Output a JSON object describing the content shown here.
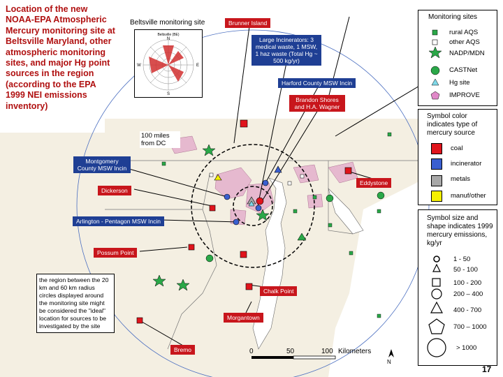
{
  "title": "Location of the new NOAA-EPA Atmospheric Mercury monitoring site at Beltsville Maryland, other atmospheric monitoring sites, and major Hg point sources in the region (according to the EPA 1999 NEI emissions inventory)",
  "beltsville": {
    "title": "Beltsville monitoring site",
    "rose_caption": "Beltsville (BE)",
    "compass": [
      "N",
      "E",
      "S",
      "W"
    ]
  },
  "distance_label": "100 miles from DC",
  "region_note": "the region between the 20 km and 60 km radius circles displayed around the monitoring site might be considered the \"ideal\" location for sources to be investigated by the site",
  "sources": {
    "brunner_island": "Brunner Island",
    "large_incinerators": "Large Incinerators: 3 medical waste, 1 MSW, 1 haz waste (Total Hg ~ 500 kg/yr)",
    "harford": "Harford County MSW Incin",
    "brandon_shores": "Brandon Shores and H.A. Wagner",
    "montgomery": "Montgomery County MSW Incin",
    "eddystone": "Eddystone",
    "dickerson": "Dickerson",
    "arlington": "Arlington - Pentagon MSW Incin",
    "possum_point": "Possum Point",
    "chalk_point": "Chalk Point",
    "morgantown": "Morgantown",
    "bremo": "Bremo"
  },
  "scale": {
    "ticks": [
      "0",
      "50",
      "100"
    ],
    "unit": "Kilometers",
    "north": "N"
  },
  "legend": {
    "sites_title": "Monitoring sites",
    "sites": [
      {
        "label": "rural AQS",
        "icon": "green-square-icon",
        "color": "#2aa848"
      },
      {
        "label": "other AQS",
        "icon": "white-square-icon",
        "color": "#ffffff"
      },
      {
        "label": "NADP/MDN",
        "icon": "green-star-icon",
        "color": "#2aa848"
      },
      {
        "label": "CASTNet",
        "icon": "green-circle-icon",
        "color": "#2aa848"
      },
      {
        "label": "Hg site",
        "icon": "cyan-triangle-icon",
        "color": "#7fd8e8"
      },
      {
        "label": "IMPROVE",
        "icon": "pink-pentagon-icon",
        "color": "#e088c8"
      }
    ],
    "color_title": "Symbol color indicates type of mercury source",
    "colors": [
      {
        "label": "coal",
        "color": "#e0141c"
      },
      {
        "label": "incinerator",
        "color": "#3a5fd0"
      },
      {
        "label": "metals",
        "color": "#a8a8a8"
      },
      {
        "label": "manuf/other",
        "color": "#f6f000"
      }
    ],
    "size_title": "Symbol size and shape indicates 1999 mercury emissions, kg/yr",
    "sizes": [
      {
        "label": "1 - 50",
        "icon": "small-circle-icon"
      },
      {
        "label": "50 - 100",
        "icon": "small-triangle-icon"
      },
      {
        "label": "100 - 200",
        "icon": "small-square-icon"
      },
      {
        "label": "200 – 400",
        "icon": "medium-circle-icon"
      },
      {
        "label": "400 - 700",
        "icon": "large-triangle-icon"
      },
      {
        "label": "700 – 1000",
        "icon": "pentagon-icon"
      },
      {
        "label": "> 1000",
        "icon": "large-circle-icon"
      }
    ]
  },
  "page_number": "17"
}
